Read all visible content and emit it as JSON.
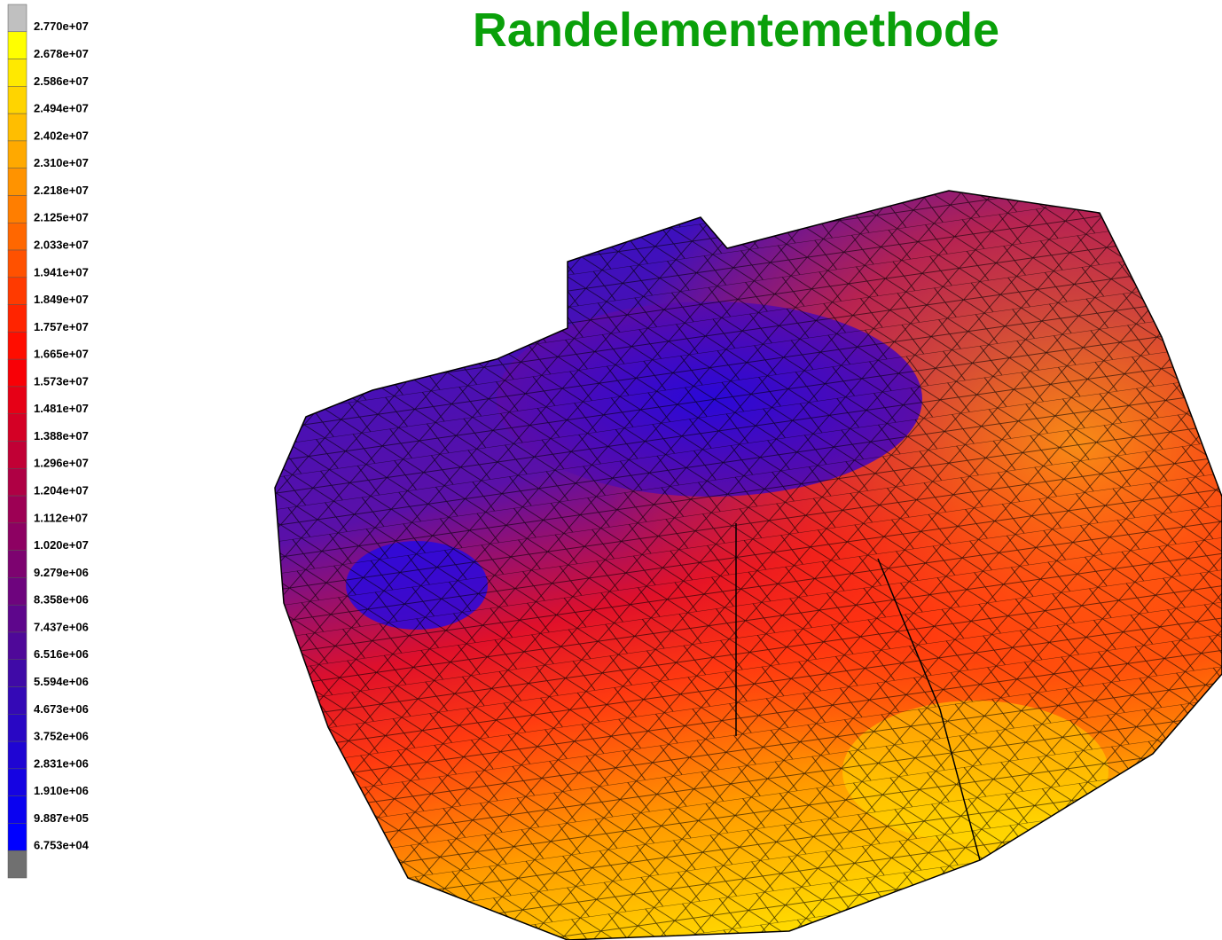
{
  "title": "Randelementemethode",
  "legend": {
    "labels": [
      "2.770e+07",
      "2.678e+07",
      "2.586e+07",
      "2.494e+07",
      "2.402e+07",
      "2.310e+07",
      "2.218e+07",
      "2.125e+07",
      "2.033e+07",
      "1.941e+07",
      "1.849e+07",
      "1.757e+07",
      "1.665e+07",
      "1.573e+07",
      "1.481e+07",
      "1.388e+07",
      "1.296e+07",
      "1.204e+07",
      "1.112e+07",
      "1.020e+07",
      "9.279e+06",
      "8.358e+06",
      "7.437e+06",
      "6.516e+06",
      "5.594e+06",
      "4.673e+06",
      "3.752e+06",
      "2.831e+06",
      "1.910e+06",
      "9.887e+05",
      "6.753e+04"
    ]
  }
}
